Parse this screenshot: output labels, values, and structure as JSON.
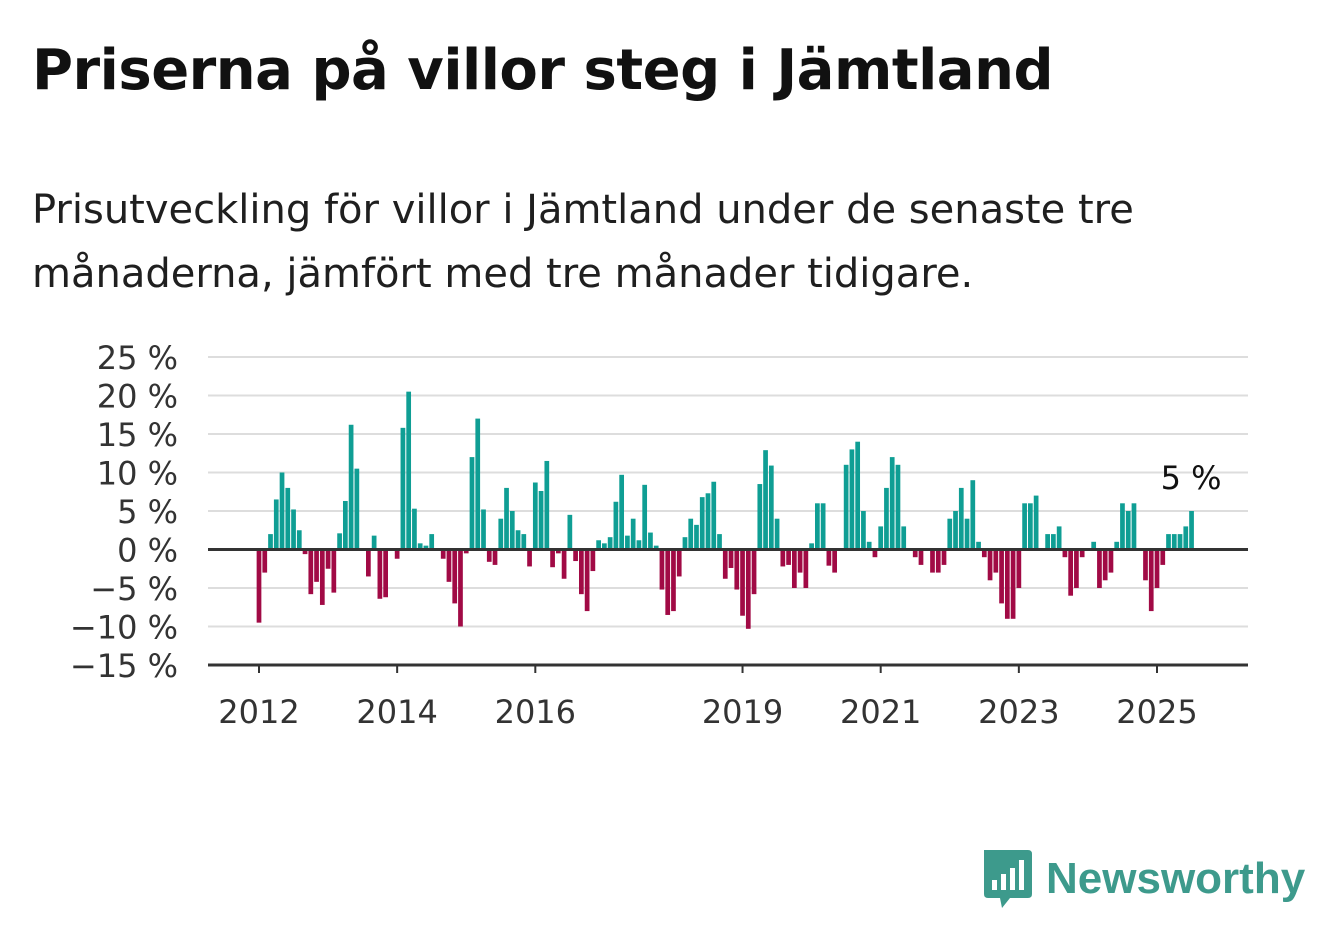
{
  "title": "Priserna på villor steg i Jämtland",
  "subtitle": "Prisutveckling för villor i Jämtland under de senaste tre månaderna, jämfört med tre månader tidigare.",
  "brand": "Newsworthy",
  "colors": {
    "positive": "#0f9e94",
    "negative": "#a10a45",
    "grid": "#dddddd",
    "axis": "#333333",
    "brand": "#3d9a8c"
  },
  "chart_data": {
    "type": "bar",
    "yticks": [
      "25 %",
      "20 %",
      "15 %",
      "10 %",
      "5 %",
      "0 %",
      "−5 %",
      "−10 %",
      "−15 %"
    ],
    "ytick_values": [
      25,
      20,
      15,
      10,
      5,
      0,
      -5,
      -10,
      -15
    ],
    "xticks": [
      "2012",
      "2014",
      "2016",
      "2019",
      "2021",
      "2023",
      "2025"
    ],
    "xtick_values": [
      2012,
      2014,
      2016,
      2019,
      2021,
      2023,
      2025
    ],
    "ylim": [
      -15,
      25
    ],
    "grid": true,
    "annotation": "5 %",
    "start": "2012-01",
    "values": [
      -9.5,
      -3,
      2,
      6.5,
      10,
      8,
      5.2,
      2.5,
      -0.6,
      -5.8,
      -4.2,
      -7.2,
      -2.5,
      -5.6,
      2.1,
      6.3,
      16.2,
      10.5,
      0,
      -3.5,
      1.8,
      -6.4,
      -6.2,
      0,
      -1.2,
      15.8,
      20.5,
      5.3,
      0.8,
      0.5,
      2,
      0,
      -1.2,
      -4.2,
      -7,
      -10,
      -0.5,
      12,
      17,
      5.2,
      -1.6,
      -2,
      4,
      8,
      5,
      2.5,
      2,
      -2.2,
      8.7,
      7.6,
      11.5,
      -2.3,
      -0.5,
      -3.8,
      4.5,
      -1.5,
      -5.8,
      -8,
      -2.8,
      1.2,
      0.8,
      1.6,
      6.2,
      9.7,
      1.8,
      4,
      1.2,
      8.4,
      2.2,
      0.5,
      -5.2,
      -8.5,
      -8,
      -3.5,
      1.6,
      4,
      3.2,
      6.8,
      7.3,
      8.8,
      2,
      -3.8,
      -2.4,
      -5.2,
      -8.6,
      -10.3,
      -5.8,
      8.5,
      12.9,
      10.9,
      4,
      -2.2,
      -2,
      -5,
      -3,
      -5,
      0.8,
      6,
      6,
      -2.1,
      -3,
      0,
      11,
      13,
      14,
      5,
      1,
      -1,
      3,
      8,
      12,
      11,
      3,
      0,
      -1,
      -2,
      0,
      -3,
      -3,
      -2,
      4,
      5,
      8,
      4,
      9,
      1,
      -1,
      -4,
      -3,
      -7,
      -9,
      -9,
      -5,
      6,
      6,
      7,
      0,
      2,
      2,
      3,
      -1,
      -6,
      -5,
      -1,
      0,
      1,
      -5,
      -4,
      -3,
      1,
      6,
      5,
      6,
      0,
      -4,
      -8,
      -5,
      -2,
      2,
      2,
      2,
      3,
      5
    ]
  }
}
